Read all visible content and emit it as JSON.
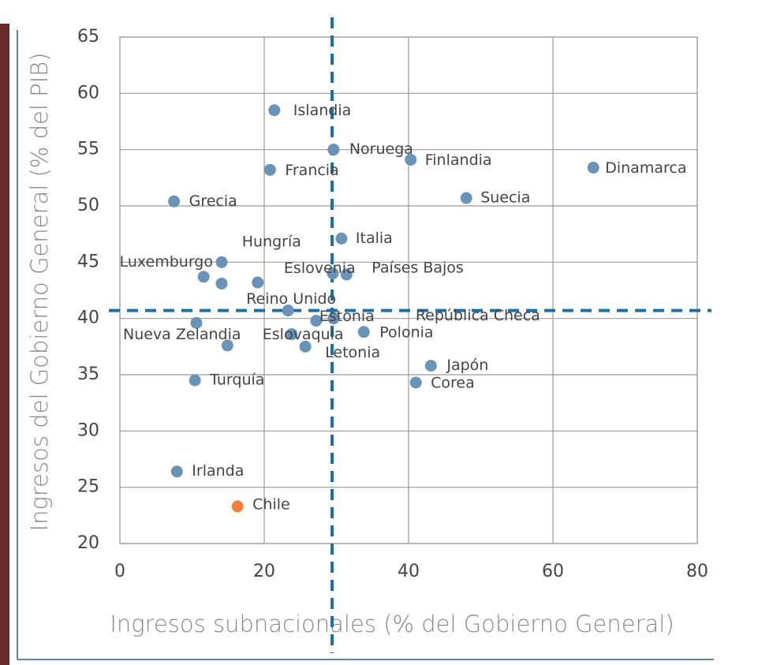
{
  "chart_data": {
    "type": "scatter",
    "xlabel": "Ingresos subnacionales (% del Gobierno General)",
    "ylabel": "Ingresos del Gobierno General (% del PIB)",
    "xlim": [
      0,
      80
    ],
    "xticks": [
      0,
      20,
      40,
      60,
      80
    ],
    "ylim": [
      20,
      65
    ],
    "yticks": [
      20,
      25,
      30,
      35,
      40,
      45,
      50,
      55,
      60,
      65
    ],
    "grid": true,
    "color": "#6a93b8",
    "reference_x": 29.4,
    "reference_y": 40.7,
    "reference_color": "#1f6fa3",
    "labels": [
      "Islandia",
      "Noruega",
      "Finlandia",
      "Francia",
      "Dinamarca",
      "Grecia",
      "Suecia",
      "Italia",
      "Luxemburgo",
      "Hungría",
      null,
      null,
      "Eslovenia",
      "Países Bajos",
      "Reino Unido",
      "Estonia",
      "República Checa",
      "Nueva Zelandia",
      "Eslovaquia",
      null,
      "Letonia",
      "Polonia",
      "Japón",
      "Corea",
      "Turquía",
      "Irlanda"
    ],
    "x": [
      21.4,
      29.6,
      40.3,
      20.8,
      65.6,
      7.5,
      48.0,
      30.7,
      14.1,
      19.1,
      11.6,
      14.1,
      29.5,
      31.4,
      23.3,
      27.2,
      29.6,
      10.6,
      23.8,
      14.9,
      25.7,
      33.8,
      43.1,
      41.0,
      10.4,
      7.9
    ],
    "y": [
      58.5,
      55.0,
      54.1,
      53.2,
      53.4,
      50.4,
      50.7,
      47.1,
      45.0,
      43.2,
      43.7,
      43.1,
      44.0,
      43.9,
      40.7,
      39.8,
      40.0,
      39.6,
      38.6,
      37.6,
      37.5,
      38.8,
      35.8,
      34.3,
      34.5,
      26.4
    ],
    "highlight": {
      "label": "Chile",
      "x": 16.3,
      "y": 23.3,
      "color": "#f0803c"
    }
  }
}
